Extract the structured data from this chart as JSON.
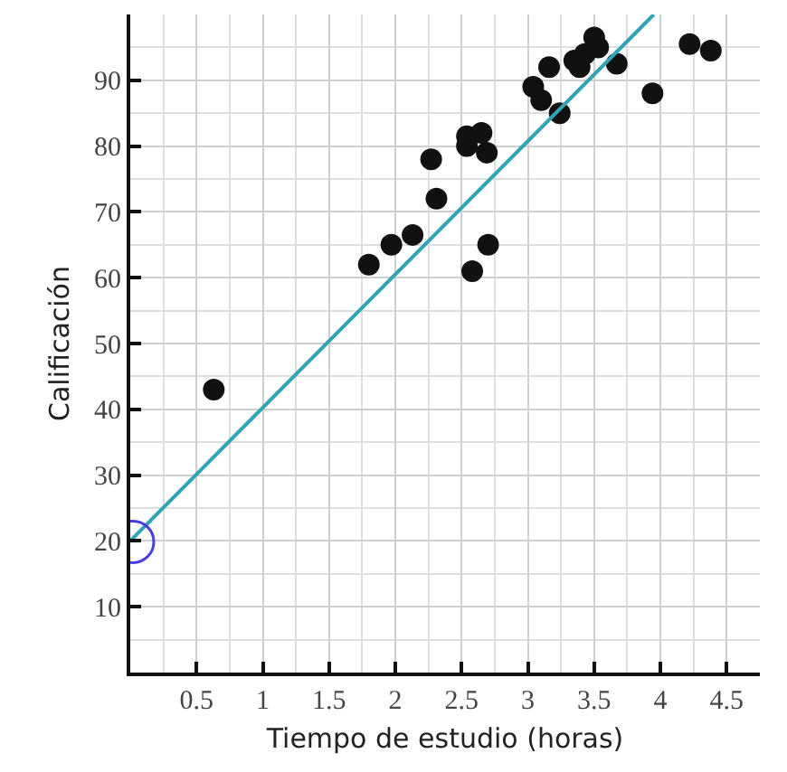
{
  "chart_data": {
    "type": "scatter",
    "xlabel": "Tiempo de estudio (horas)",
    "ylabel": "Calificación",
    "series": [
      {
        "color": "#111111",
        "marker": "circle",
        "x": [
          0.63,
          1.8,
          1.97,
          2.13,
          2.31,
          2.27,
          2.54,
          2.54,
          2.65,
          2.69,
          2.58,
          2.7,
          3.04,
          3.1,
          3.16,
          3.24,
          3.35,
          3.39,
          3.43,
          3.5,
          3.53,
          3.67,
          3.94,
          4.22,
          4.38
        ],
        "values": [
          43,
          62,
          65,
          66.5,
          72,
          78,
          81.5,
          80,
          82,
          79,
          61,
          65,
          89,
          87,
          92,
          85,
          93,
          92,
          94,
          96.5,
          95,
          92.5,
          88,
          95.5,
          94.5
        ]
      },
      {
        "type": "line",
        "color": "#2fa4b4",
        "line_style": "solid",
        "x": [
          0,
          3.95
        ],
        "values": [
          20,
          100
        ]
      }
    ],
    "xlim": [
      0,
      4.75
    ],
    "ylim": [
      0,
      100
    ],
    "xticks": [
      0.5,
      1,
      1.5,
      2,
      2.5,
      3,
      3.5,
      4,
      4.5
    ],
    "yticks": [
      10,
      20,
      30,
      40,
      50,
      60,
      70,
      80,
      90
    ],
    "grid": true
  }
}
